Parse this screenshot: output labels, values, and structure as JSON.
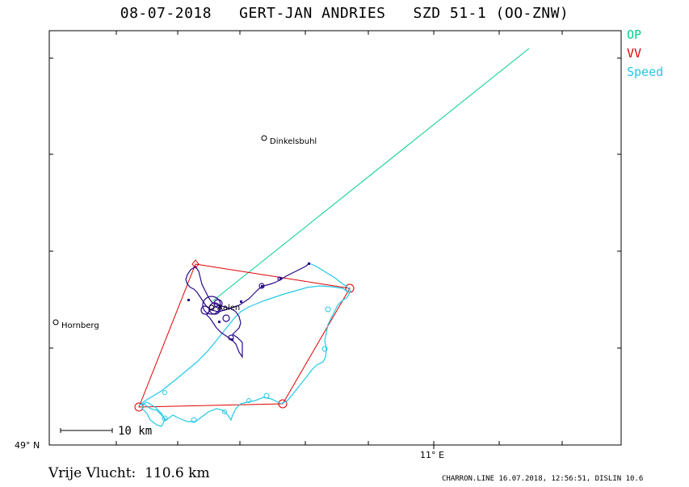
{
  "title": "08-07-2018   GERT-JAN ANDRIES   SZD 51-1 (OO-ZNW)",
  "legend": [
    {
      "label": "OP",
      "color": "#00d08a"
    },
    {
      "label": "VV",
      "color": "#e00000"
    },
    {
      "label": "Speed",
      "color": "#22c8e8"
    }
  ],
  "axes": {
    "lat_label": "49° N",
    "lon_label": "11° E"
  },
  "scale_bar": {
    "label": "10 km"
  },
  "towns": [
    {
      "name": "Dinkelsbuhl"
    },
    {
      "name": "Hornberg"
    },
    {
      "name": "Aalen"
    }
  ],
  "colors": {
    "op_line": "#00d08a",
    "vv_task": "#e00000",
    "speed_track": "#22c8e8",
    "climb_track": "#2a0a8a",
    "frame": "#000000"
  },
  "footer": {
    "result": "Vrije Vlucht:  110.6 km",
    "credit": "CHARRON.LINE 16.07.2018, 12:56:51, DISLIN 10.6"
  }
}
